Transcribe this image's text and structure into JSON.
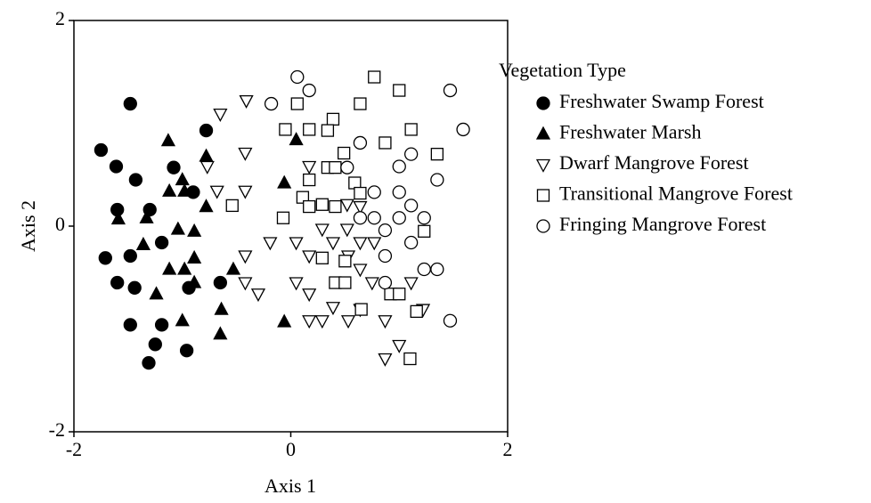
{
  "chart_data": {
    "type": "scatter",
    "xlabel": "Axis 1",
    "ylabel": "Axis 2",
    "legend_title": "Vegetation Type",
    "xlim": [
      -2,
      2
    ],
    "ylim": [
      -2,
      2
    ],
    "xticks": [
      -2,
      0,
      2
    ],
    "yticks": [
      -2,
      0,
      2
    ],
    "grid": false,
    "legend": "right",
    "series": [
      {
        "name": "Freshwater Swamp Forest",
        "color": "#000000",
        "marker": "circle",
        "filled": true,
        "x": [
          -1.48,
          -1.75,
          -1.61,
          -1.43,
          -1.08,
          -0.78,
          -0.9,
          -1.3,
          -1.6,
          -1.71,
          -1.48,
          -1.19,
          -1.6,
          -1.44,
          -0.94,
          -0.65,
          -1.48,
          -1.19,
          -1.25,
          -1.31,
          -0.96
        ],
        "y": [
          1.19,
          0.74,
          0.58,
          0.45,
          0.57,
          0.93,
          0.33,
          0.16,
          0.16,
          -0.31,
          -0.29,
          -0.16,
          -0.55,
          -0.6,
          -0.6,
          -0.55,
          -0.96,
          -0.96,
          -1.15,
          -1.33,
          -1.21
        ]
      },
      {
        "name": "Freshwater Marsh",
        "color": "#000000",
        "marker": "triangle-up",
        "filled": true,
        "x": [
          -1.13,
          -0.78,
          -1.0,
          -1.12,
          -0.98,
          -0.78,
          -1.33,
          -1.59,
          -1.04,
          -0.89,
          -1.36,
          -0.89,
          -1.12,
          -0.98,
          -0.53,
          -0.89,
          -1.24,
          -1.0,
          -0.64,
          -0.65,
          -0.06,
          0.05,
          -0.06
        ],
        "y": [
          0.83,
          0.68,
          0.45,
          0.34,
          0.34,
          0.19,
          0.08,
          0.07,
          -0.03,
          -0.05,
          -0.18,
          -0.31,
          -0.42,
          -0.42,
          -0.42,
          -0.55,
          -0.66,
          -0.92,
          -0.81,
          -1.05,
          0.42,
          0.84,
          -0.93
        ]
      },
      {
        "name": "Dwarf Mangrove Forest",
        "color": "#000000",
        "marker": "triangle-down",
        "filled": false,
        "x": [
          -0.65,
          -0.41,
          -0.77,
          -0.68,
          -0.42,
          -0.42,
          -0.42,
          -0.42,
          -0.3,
          -0.19,
          0.05,
          0.17,
          0.17,
          0.05,
          0.17,
          0.29,
          0.39,
          0.52,
          0.53,
          0.17,
          0.29,
          0.39,
          0.53,
          0.64,
          0.64,
          0.75,
          0.64,
          0.77,
          0.87,
          1.0,
          0.87,
          1.11,
          1.22,
          0.64,
          0.52
        ],
        "y": [
          1.09,
          1.22,
          0.58,
          0.34,
          0.34,
          0.71,
          -0.29,
          -0.55,
          -0.66,
          -0.16,
          -0.55,
          -0.66,
          0.58,
          -0.16,
          -0.29,
          -0.03,
          -0.16,
          -0.03,
          -0.29,
          -0.92,
          -0.92,
          -0.79,
          -0.92,
          -0.81,
          -0.42,
          -0.55,
          -0.16,
          -0.16,
          -0.92,
          -1.16,
          -1.29,
          -0.55,
          -0.81,
          0.19,
          0.21
        ]
      },
      {
        "name": "Transitional Mangrove Forest",
        "color": "#000000",
        "marker": "square",
        "filled": false,
        "x": [
          0.77,
          1.0,
          0.64,
          0.06,
          -0.05,
          0.17,
          0.39,
          0.34,
          0.49,
          1.11,
          0.87,
          0.34,
          0.41,
          1.35,
          0.17,
          0.59,
          0.11,
          0.29,
          0.17,
          0.41,
          -0.54,
          -0.07,
          0.64,
          1.23,
          0.29,
          0.5,
          0.41,
          0.5,
          0.65,
          0.92,
          1.0,
          1.16,
          1.1
        ],
        "y": [
          1.45,
          1.32,
          1.19,
          1.19,
          0.94,
          0.94,
          1.04,
          0.93,
          0.71,
          0.94,
          0.81,
          0.57,
          0.57,
          0.7,
          0.45,
          0.42,
          0.28,
          0.21,
          0.19,
          0.19,
          0.2,
          0.08,
          0.32,
          -0.05,
          -0.31,
          -0.34,
          -0.55,
          -0.55,
          -0.81,
          -0.66,
          -0.66,
          -0.83,
          -1.29
        ]
      },
      {
        "name": "Fringing Mangrove Forest",
        "color": "#000000",
        "marker": "circle",
        "filled": false,
        "x": [
          0.06,
          0.17,
          -0.18,
          1.47,
          1.59,
          0.64,
          1.11,
          1.0,
          0.52,
          1.35,
          0.77,
          1.0,
          1.11,
          0.64,
          0.77,
          1.0,
          1.23,
          0.87,
          1.11,
          1.23,
          1.35,
          0.87,
          0.87,
          1.47
        ],
        "y": [
          1.45,
          1.32,
          1.19,
          1.32,
          0.94,
          0.81,
          0.7,
          0.58,
          0.57,
          0.45,
          0.33,
          0.33,
          0.2,
          0.08,
          0.08,
          0.08,
          0.08,
          -0.04,
          -0.16,
          -0.42,
          -0.42,
          -0.55,
          -0.29,
          -0.92
        ]
      }
    ]
  }
}
